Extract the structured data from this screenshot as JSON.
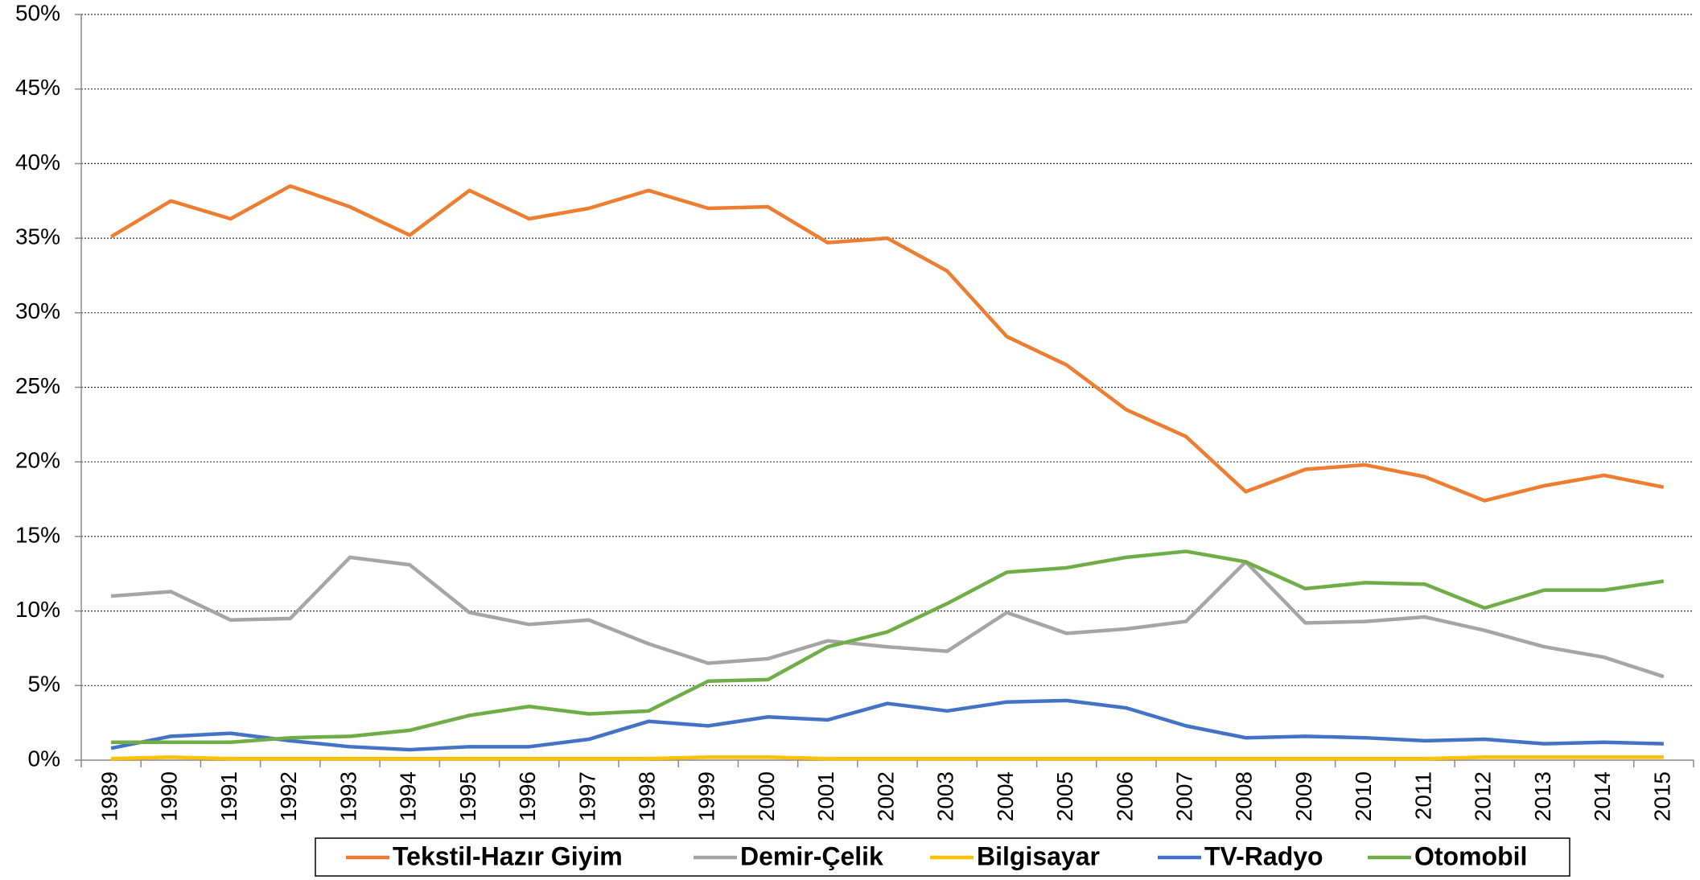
{
  "chart_data": {
    "type": "line",
    "categories": [
      "1989",
      "1990",
      "1991",
      "1992",
      "1993",
      "1994",
      "1995",
      "1996",
      "1997",
      "1998",
      "1999",
      "2000",
      "2001",
      "2002",
      "2003",
      "2004",
      "2005",
      "2006",
      "2007",
      "2008",
      "2009",
      "2010",
      "2011",
      "2012",
      "2013",
      "2014",
      "2015"
    ],
    "series": [
      {
        "name": "Tekstil-Hazır Giyim",
        "color": "#ed7d31",
        "values": [
          35.1,
          37.5,
          36.3,
          38.5,
          37.1,
          35.2,
          38.2,
          36.3,
          37.0,
          38.2,
          37.0,
          37.1,
          34.7,
          35.0,
          32.8,
          28.4,
          26.5,
          23.5,
          21.7,
          18.0,
          19.5,
          19.8,
          19.0,
          17.4,
          18.4,
          19.1,
          18.3
        ]
      },
      {
        "name": "Demir-Çelik",
        "color": "#a5a5a5",
        "values": [
          11.0,
          11.3,
          9.4,
          9.5,
          13.6,
          13.1,
          9.9,
          9.1,
          9.4,
          7.8,
          6.5,
          6.8,
          8.0,
          7.6,
          7.3,
          9.9,
          8.5,
          8.8,
          9.3,
          13.3,
          9.2,
          9.3,
          9.6,
          8.7,
          7.6,
          6.9,
          5.6
        ]
      },
      {
        "name": "Bilgisayar",
        "color": "#ffc000",
        "values": [
          0.1,
          0.2,
          0.1,
          0.1,
          0.1,
          0.1,
          0.1,
          0.1,
          0.1,
          0.1,
          0.2,
          0.2,
          0.1,
          0.1,
          0.1,
          0.1,
          0.1,
          0.1,
          0.1,
          0.1,
          0.1,
          0.1,
          0.1,
          0.2,
          0.2,
          0.2,
          0.2
        ]
      },
      {
        "name": "TV-Radyo",
        "color": "#4472c4",
        "values": [
          0.8,
          1.6,
          1.8,
          1.3,
          0.9,
          0.7,
          0.9,
          0.9,
          1.4,
          2.6,
          2.3,
          2.9,
          2.7,
          3.8,
          3.3,
          3.9,
          4.0,
          3.5,
          2.3,
          1.5,
          1.6,
          1.5,
          1.3,
          1.4,
          1.1,
          1.2,
          1.1
        ]
      },
      {
        "name": "Otomobil",
        "color": "#70ad47",
        "values": [
          1.2,
          1.2,
          1.2,
          1.5,
          1.6,
          2.0,
          3.0,
          3.6,
          3.1,
          3.3,
          5.3,
          5.4,
          7.6,
          8.6,
          10.5,
          12.6,
          12.9,
          13.6,
          14.0,
          13.3,
          11.5,
          11.9,
          11.8,
          10.2,
          11.4,
          11.4,
          12.0
        ]
      }
    ],
    "ylim": [
      0,
      50
    ],
    "yticks": [
      {
        "value": 0,
        "label": "0%"
      },
      {
        "value": 5,
        "label": "5%"
      },
      {
        "value": 10,
        "label": "10%"
      },
      {
        "value": 15,
        "label": "15%"
      },
      {
        "value": 20,
        "label": "20%"
      },
      {
        "value": 25,
        "label": "25%"
      },
      {
        "value": 30,
        "label": "30%"
      },
      {
        "value": 35,
        "label": "35%"
      },
      {
        "value": 40,
        "label": "40%"
      },
      {
        "value": 45,
        "label": "45%"
      },
      {
        "value": 50,
        "label": "50%"
      }
    ],
    "grid": true,
    "legend": "bottom"
  }
}
